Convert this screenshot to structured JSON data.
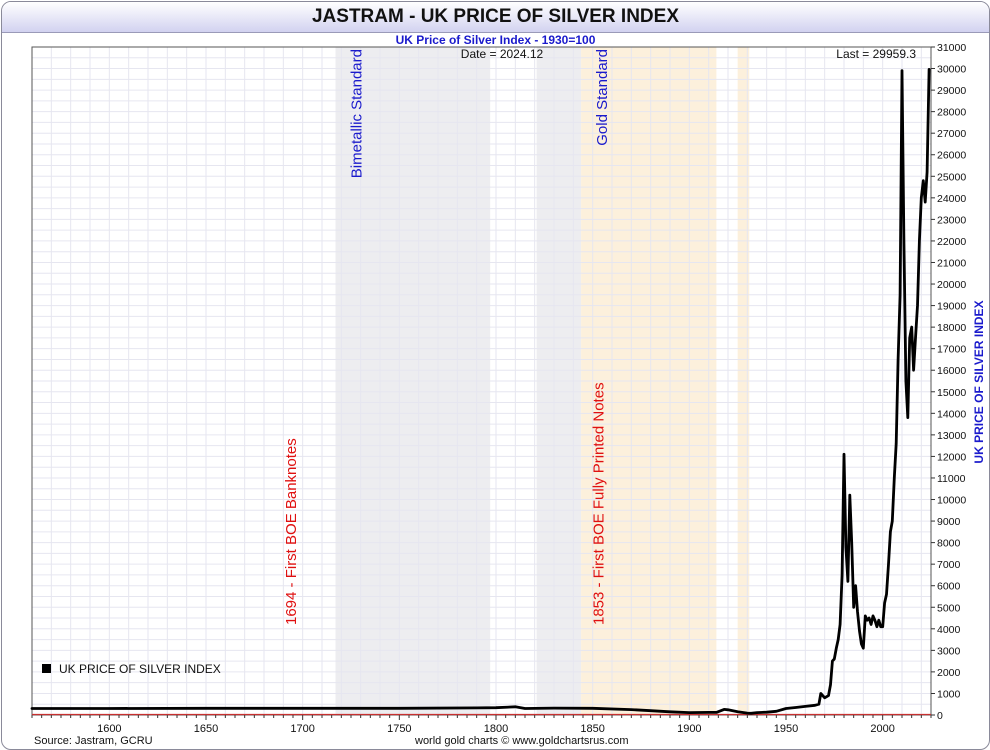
{
  "chart_data": {
    "type": "line",
    "title": "JASTRAM - UK PRICE OF SILVER INDEX",
    "subtitle": "UK Price of Silver Index - 1930=100",
    "ylabel": "UK PRICE OF SILVER INDEX",
    "ylim": [
      0,
      31000
    ],
    "xlim": [
      1560,
      2025
    ],
    "grid": true,
    "legend": {
      "position": "bottom-left",
      "entries": [
        "UK PRICE OF SILVER INDEX"
      ]
    },
    "date_label": "Date = 2024.12",
    "last_label": "Last = 29959.3",
    "source": "Source: Jastram, GCRU",
    "credit": "world gold charts © www.goldchartsrus.com",
    "x_ticks": [
      1600,
      1650,
      1700,
      1750,
      1800,
      1850,
      1900,
      1950,
      2000
    ],
    "y_ticks": [
      0,
      1000,
      2000,
      3000,
      4000,
      5000,
      6000,
      7000,
      8000,
      9000,
      10000,
      11000,
      12000,
      13000,
      14000,
      15000,
      16000,
      17000,
      18000,
      19000,
      20000,
      21000,
      22000,
      23000,
      24000,
      25000,
      26000,
      27000,
      28000,
      29000,
      30000,
      31000
    ],
    "regions": [
      {
        "x0": 1717,
        "x1": 1797,
        "color": "#ededf0",
        "label": "Bimetallic Standard"
      },
      {
        "x0": 1821,
        "x1": 1844,
        "color": "#ededf0",
        "label": ""
      },
      {
        "x0": 1844,
        "x1": 1914,
        "color": "#fcf0dc",
        "label": "Gold Standard"
      },
      {
        "x0": 1925,
        "x1": 1931,
        "color": "#fcf0dc",
        "label": ""
      }
    ],
    "annotations": [
      {
        "text": "1694 - First BOE Banknotes",
        "x": 1694
      },
      {
        "text": "1853 - First BOE Fully Printed Notes",
        "x": 1853
      }
    ],
    "series": [
      {
        "name": "UK PRICE OF SILVER INDEX",
        "color": "#000000",
        "points": [
          [
            1560,
            300
          ],
          [
            1600,
            300
          ],
          [
            1650,
            310
          ],
          [
            1700,
            310
          ],
          [
            1750,
            310
          ],
          [
            1790,
            330
          ],
          [
            1800,
            340
          ],
          [
            1810,
            380
          ],
          [
            1815,
            300
          ],
          [
            1830,
            320
          ],
          [
            1850,
            310
          ],
          [
            1870,
            250
          ],
          [
            1880,
            200
          ],
          [
            1890,
            150
          ],
          [
            1900,
            110
          ],
          [
            1910,
            120
          ],
          [
            1914,
            120
          ],
          [
            1918,
            260
          ],
          [
            1920,
            240
          ],
          [
            1925,
            150
          ],
          [
            1930,
            90
          ],
          [
            1932,
            80
          ],
          [
            1935,
            110
          ],
          [
            1940,
            130
          ],
          [
            1945,
            170
          ],
          [
            1950,
            300
          ],
          [
            1955,
            350
          ],
          [
            1960,
            400
          ],
          [
            1965,
            450
          ],
          [
            1967,
            500
          ],
          [
            1968,
            1000
          ],
          [
            1970,
            800
          ],
          [
            1972,
            900
          ],
          [
            1973,
            1400
          ],
          [
            1974,
            2500
          ],
          [
            1975,
            2600
          ],
          [
            1976,
            3100
          ],
          [
            1977,
            3500
          ],
          [
            1978,
            4200
          ],
          [
            1979,
            6500
          ],
          [
            1980,
            12100
          ],
          [
            1981,
            7800
          ],
          [
            1982,
            6200
          ],
          [
            1983,
            10200
          ],
          [
            1984,
            8000
          ],
          [
            1985,
            5000
          ],
          [
            1986,
            6000
          ],
          [
            1987,
            4800
          ],
          [
            1988,
            3900
          ],
          [
            1989,
            3300
          ],
          [
            1990,
            3100
          ],
          [
            1991,
            4600
          ],
          [
            1992,
            4400
          ],
          [
            1993,
            4500
          ],
          [
            1994,
            4200
          ],
          [
            1995,
            4600
          ],
          [
            1996,
            4400
          ],
          [
            1997,
            4100
          ],
          [
            1998,
            4400
          ],
          [
            1999,
            4100
          ],
          [
            2000,
            4100
          ],
          [
            2001,
            5200
          ],
          [
            2002,
            5600
          ],
          [
            2003,
            7000
          ],
          [
            2004,
            8500
          ],
          [
            2005,
            9000
          ],
          [
            2006,
            11000
          ],
          [
            2007,
            12600
          ],
          [
            2008,
            16500
          ],
          [
            2009,
            19500
          ],
          [
            2010,
            29900
          ],
          [
            2011,
            22000
          ],
          [
            2012,
            15500
          ],
          [
            2013,
            13800
          ],
          [
            2014,
            17500
          ],
          [
            2015,
            18000
          ],
          [
            2016,
            16000
          ],
          [
            2017,
            17500
          ],
          [
            2018,
            19000
          ],
          [
            2019,
            22000
          ],
          [
            2020,
            24000
          ],
          [
            2021,
            24800
          ],
          [
            2022,
            23800
          ],
          [
            2023,
            25200
          ],
          [
            2024,
            29959
          ]
        ]
      }
    ]
  }
}
